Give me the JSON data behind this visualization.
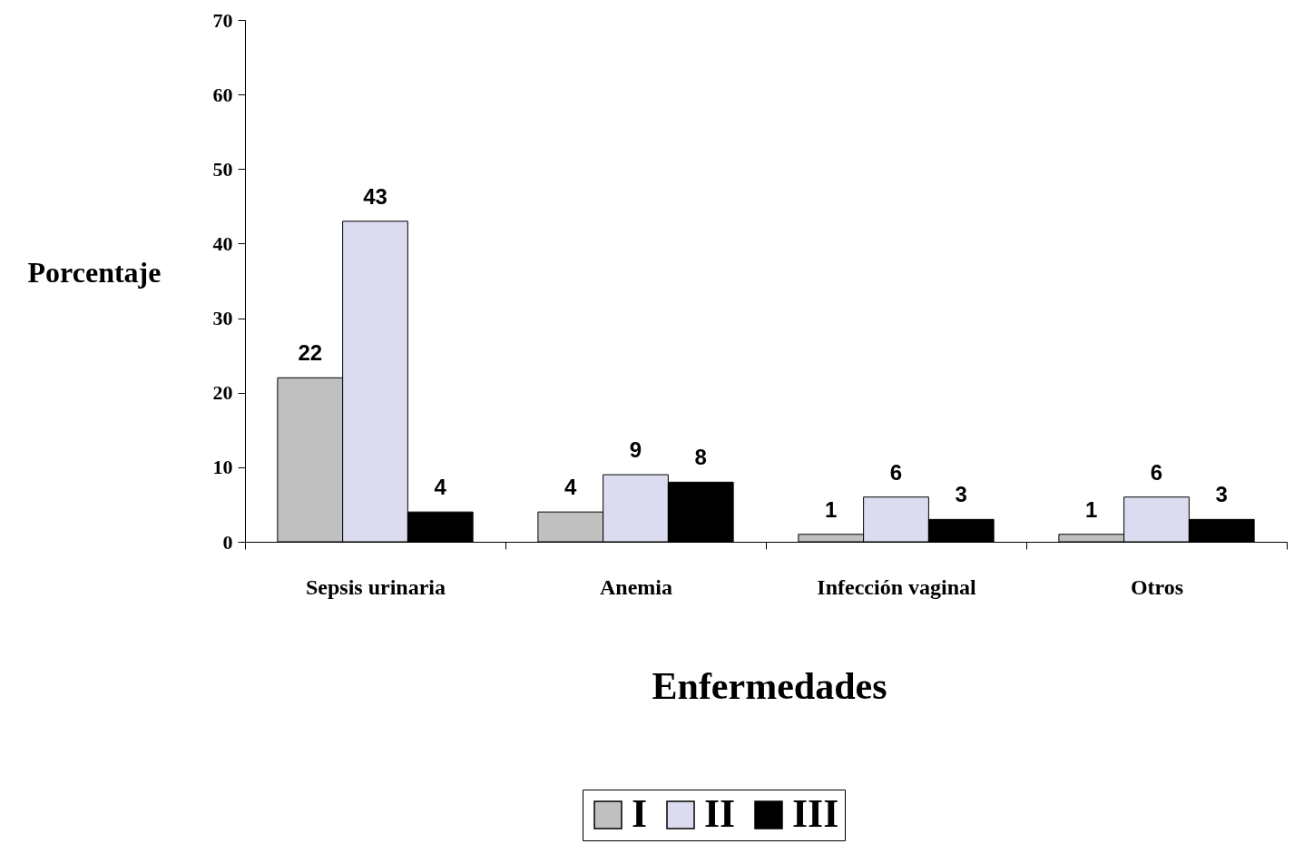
{
  "chart_data": {
    "type": "bar",
    "xlabel": "Enfermedades",
    "ylabel": "Porcentaje",
    "categories": [
      "Sepsis urinaria",
      "Anemia",
      "Infección vaginal",
      "Otros"
    ],
    "series": [
      {
        "name": "I",
        "color": "#c0c0c0",
        "values": [
          22,
          4,
          1,
          1
        ]
      },
      {
        "name": "II",
        "color": "#dcdcf0",
        "values": [
          43,
          9,
          6,
          6
        ]
      },
      {
        "name": "III",
        "color": "#000000",
        "values": [
          4,
          8,
          3,
          3
        ]
      }
    ],
    "ylim": [
      0,
      70
    ],
    "yticks": [
      0,
      10,
      20,
      30,
      40,
      50,
      60,
      70
    ],
    "data_labels": true,
    "legend": "bottom",
    "grid": false
  }
}
